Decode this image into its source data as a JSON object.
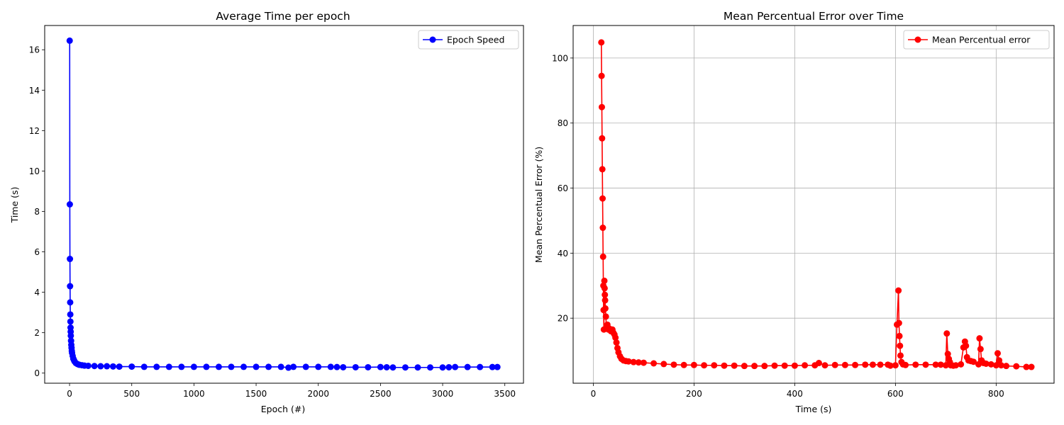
{
  "chart_data": [
    {
      "type": "line",
      "title": "Average Time per epoch",
      "xlabel": "Epoch (#)",
      "ylabel": "Time (s)",
      "xlim": [
        -200,
        3650
      ],
      "ylim": [
        -0.5,
        17.2
      ],
      "xticks": [
        0,
        500,
        1000,
        1500,
        2000,
        2500,
        3000,
        3500
      ],
      "yticks": [
        0,
        2,
        4,
        6,
        8,
        10,
        12,
        14,
        16
      ],
      "grid": false,
      "legend_position": "top-right",
      "color": "#0000ff",
      "marker": "circle",
      "series": [
        {
          "name": "Epoch Speed",
          "x": [
            1,
            2,
            3,
            4,
            5,
            6,
            7,
            8,
            9,
            10,
            12,
            14,
            16,
            18,
            20,
            25,
            30,
            35,
            40,
            50,
            60,
            70,
            80,
            100,
            120,
            150,
            200,
            250,
            300,
            350,
            400,
            500,
            600,
            700,
            800,
            900,
            1000,
            1100,
            1200,
            1300,
            1400,
            1500,
            1600,
            1700,
            1760,
            1800,
            1900,
            2000,
            2100,
            2150,
            2200,
            2300,
            2400,
            2500,
            2550,
            2600,
            2700,
            2800,
            2900,
            3000,
            3050,
            3100,
            3200,
            3300,
            3400,
            3440
          ],
          "y": [
            16.45,
            8.35,
            5.65,
            4.3,
            3.5,
            2.9,
            2.55,
            2.25,
            2.05,
            1.85,
            1.6,
            1.4,
            1.25,
            1.1,
            1.0,
            0.85,
            0.72,
            0.65,
            0.58,
            0.5,
            0.46,
            0.43,
            0.41,
            0.39,
            0.37,
            0.36,
            0.35,
            0.34,
            0.34,
            0.33,
            0.32,
            0.32,
            0.31,
            0.31,
            0.31,
            0.31,
            0.31,
            0.31,
            0.31,
            0.31,
            0.31,
            0.31,
            0.31,
            0.31,
            0.27,
            0.31,
            0.31,
            0.31,
            0.31,
            0.3,
            0.29,
            0.29,
            0.29,
            0.3,
            0.29,
            0.28,
            0.28,
            0.28,
            0.28,
            0.28,
            0.29,
            0.3,
            0.3,
            0.3,
            0.3,
            0.3
          ]
        }
      ]
    },
    {
      "type": "line",
      "title": "Mean Percentual Error over Time",
      "xlabel": "Time (s)",
      "ylabel": "Mean Percentual Error (%)",
      "xlim": [
        -40,
        915
      ],
      "ylim": [
        0,
        110
      ],
      "xticks": [
        0,
        200,
        400,
        600,
        800
      ],
      "yticks": [
        20,
        40,
        60,
        80,
        100
      ],
      "grid": true,
      "legend_position": "top-right",
      "color": "#ff0000",
      "marker": "circle",
      "series": [
        {
          "name": "Mean Percentual error",
          "x": [
            16,
            16.5,
            17,
            17.5,
            18,
            18.5,
            19,
            19.5,
            20,
            20.5,
            21,
            22,
            22.5,
            23,
            23.5,
            24,
            25,
            26,
            28,
            30,
            32,
            35,
            38,
            40,
            42,
            44,
            46,
            48,
            50,
            53,
            56,
            60,
            65,
            70,
            80,
            90,
            100,
            120,
            140,
            160,
            180,
            200,
            220,
            240,
            260,
            280,
            300,
            320,
            340,
            360,
            380,
            400,
            420,
            440,
            448,
            460,
            480,
            500,
            520,
            540,
            555,
            570,
            585,
            590,
            600,
            603,
            606,
            607,
            608,
            609,
            610,
            612,
            615,
            620,
            640,
            660,
            680,
            690,
            700,
            702,
            704,
            706,
            708,
            710,
            715,
            720,
            730,
            735,
            738,
            740,
            742,
            745,
            750,
            755,
            765,
            767,
            769,
            771,
            775,
            780,
            790,
            800,
            803,
            806,
            810,
            820,
            840,
            860,
            870
          ],
          "y": [
            104.8,
            94.5,
            84.9,
            75.3,
            65.8,
            56.8,
            47.8,
            38.9,
            30.0,
            22.5,
            16.5,
            31.5,
            29.2,
            27.2,
            25.5,
            23.0,
            20.5,
            17.0,
            18.0,
            16.5,
            16.8,
            16.0,
            16.5,
            15.5,
            15.0,
            14.0,
            12.5,
            10.8,
            9.5,
            8.3,
            7.5,
            7.0,
            6.8,
            6.7,
            6.5,
            6.4,
            6.3,
            6.1,
            5.9,
            5.7,
            5.6,
            5.6,
            5.5,
            5.5,
            5.4,
            5.4,
            5.3,
            5.3,
            5.3,
            5.4,
            5.4,
            5.4,
            5.5,
            5.5,
            6.2,
            5.5,
            5.6,
            5.6,
            5.6,
            5.7,
            5.7,
            5.7,
            5.7,
            5.4,
            5.5,
            18.0,
            28.5,
            18.5,
            14.5,
            11.5,
            8.5,
            6.5,
            5.8,
            5.6,
            5.7,
            5.7,
            5.7,
            5.7,
            5.5,
            15.3,
            9.0,
            7.5,
            6.5,
            5.5,
            5.4,
            5.5,
            5.8,
            11.0,
            12.8,
            11.5,
            8.0,
            7.0,
            6.8,
            6.6,
            5.8,
            13.8,
            10.5,
            7.0,
            6.2,
            6.0,
            5.8,
            5.5,
            9.2,
            7.0,
            5.5,
            5.3,
            5.2,
            5.0,
            5.0
          ]
        }
      ]
    }
  ]
}
